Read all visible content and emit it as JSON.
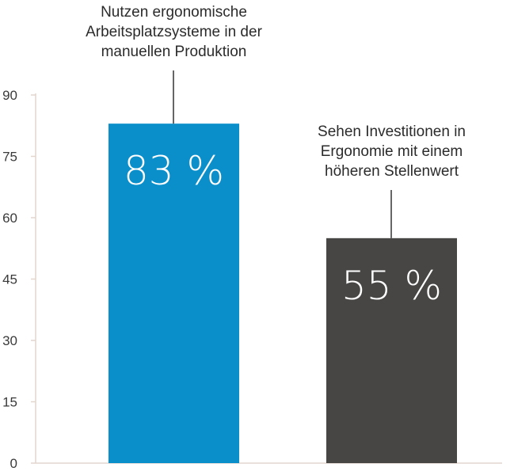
{
  "chart_data": {
    "type": "bar",
    "title": "",
    "xlabel": "",
    "ylabel": "",
    "ylim": [
      0,
      90
    ],
    "yticks": [
      "0",
      "15",
      "30",
      "45",
      "60",
      "75",
      "90"
    ],
    "grid": false,
    "categories": [
      "Nutzen ergonomische Arbeitsplatzsysteme in der manuellen Produktion",
      "Sehen Investitionen in Ergonomie mit einem höheren Stellenwert"
    ],
    "values": [
      83,
      55
    ],
    "data_labels": [
      "83 %",
      "55 %"
    ],
    "annotations": [
      [
        "Nutzen ergonomische",
        "Arbeitsplatzsysteme in der",
        "manuellen Produktion"
      ],
      [
        "Sehen Investitionen in",
        "Ergonomie mit einem",
        "höheren Stellenwert"
      ]
    ],
    "colors": [
      "#0a8fcb",
      "#474645"
    ],
    "axis_color": "#e2d6cf",
    "leader_color": "#333333"
  }
}
